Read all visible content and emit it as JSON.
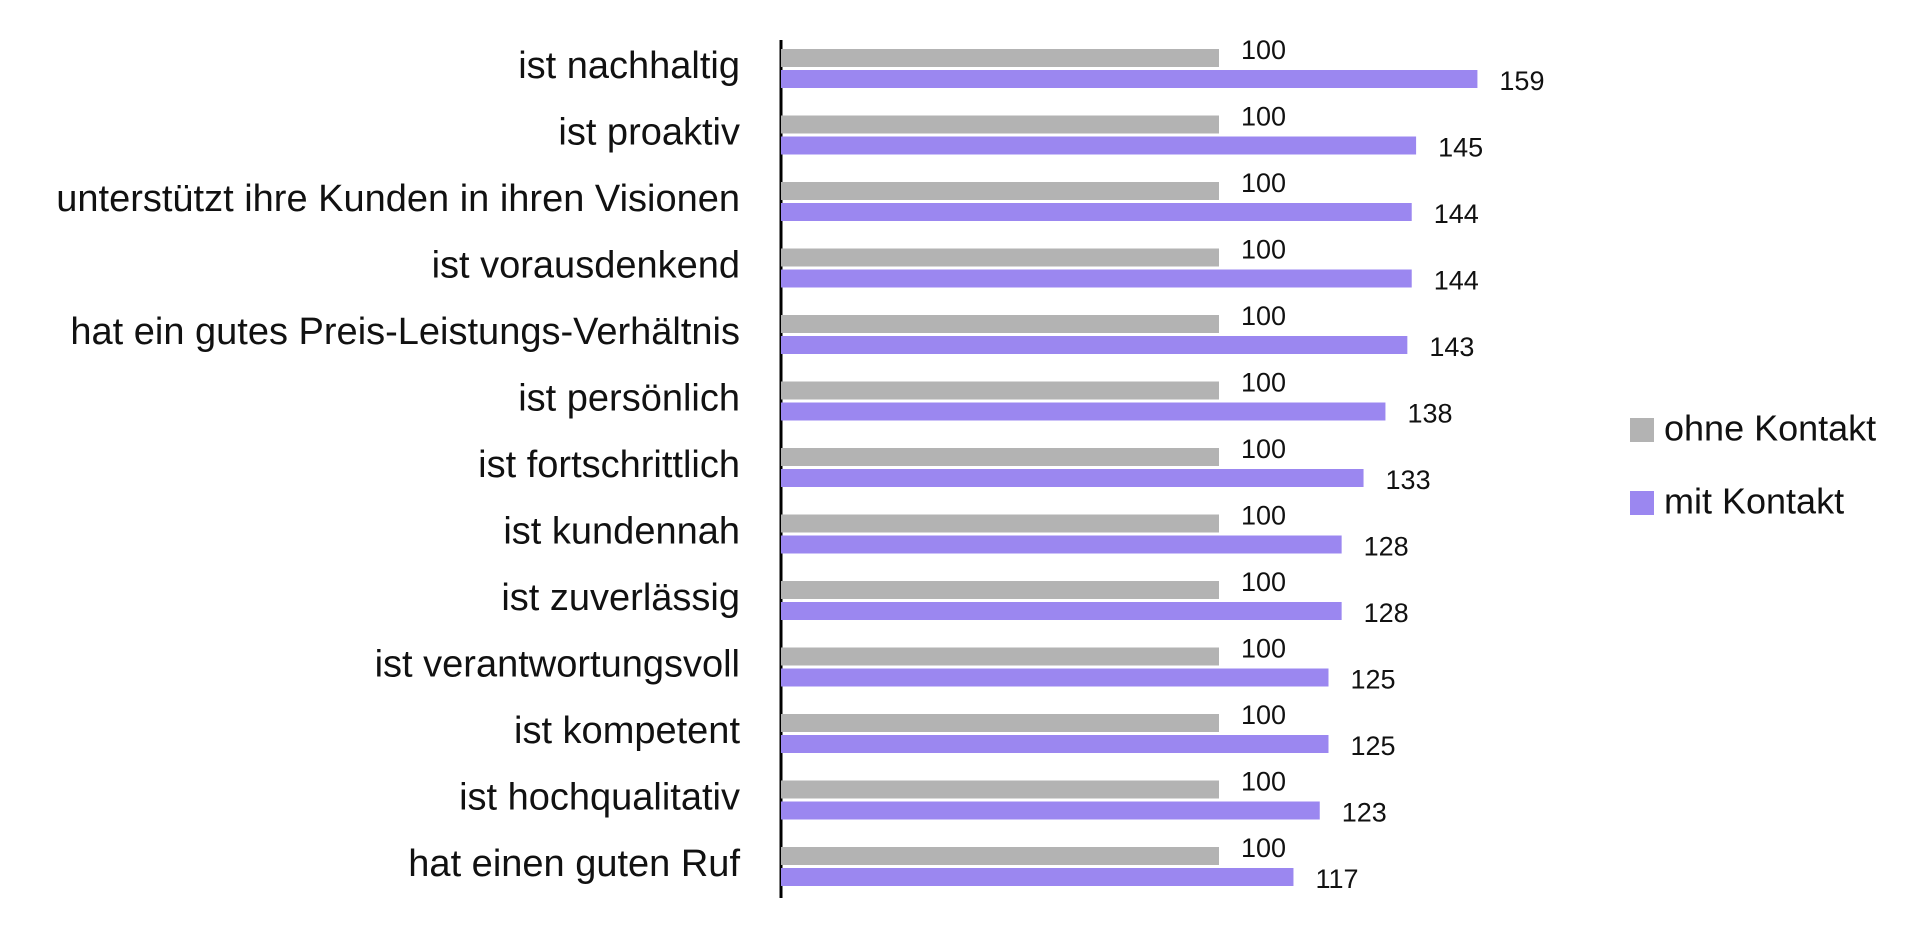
{
  "chart_data": {
    "type": "bar",
    "orientation": "horizontal",
    "categories": [
      "ist nachhaltig",
      "ist proaktiv",
      "unterstützt ihre Kunden in ihren Visionen",
      "ist vorausdenkend",
      "hat ein gutes Preis-Leistungs-Verhältnis",
      "ist persönlich",
      "ist fortschrittlich",
      "ist kundennah",
      "ist zuverlässig",
      "ist verantwortungsvoll",
      "ist kompetent",
      "ist hochqualitativ",
      "hat einen guten Ruf"
    ],
    "series": [
      {
        "name": "ohne Kontakt",
        "color": "#b3b3b3",
        "values": [
          100,
          100,
          100,
          100,
          100,
          100,
          100,
          100,
          100,
          100,
          100,
          100,
          100
        ]
      },
      {
        "name": "mit Kontakt",
        "color": "#9b87f0",
        "values": [
          159,
          145,
          144,
          144,
          143,
          138,
          133,
          128,
          128,
          125,
          125,
          123,
          117
        ]
      }
    ],
    "title": "",
    "xlabel": "",
    "ylabel": "",
    "xlim": [
      0,
      220
    ],
    "grid": false,
    "data_labels": true,
    "legend_position": "right"
  }
}
